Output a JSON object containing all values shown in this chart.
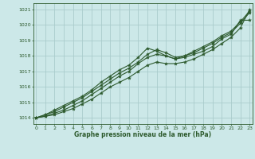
{
  "title": "Graphe pression niveau de la mer (hPa)",
  "bg_color": "#cce8e8",
  "grid_color": "#aacccc",
  "line_color": "#2d5a2d",
  "xlim": [
    -0.3,
    23.3
  ],
  "ylim": [
    1013.6,
    1021.4
  ],
  "yticks": [
    1014,
    1015,
    1016,
    1017,
    1018,
    1019,
    1020,
    1021
  ],
  "xticks": [
    0,
    1,
    2,
    3,
    4,
    5,
    6,
    7,
    8,
    9,
    10,
    11,
    12,
    13,
    14,
    15,
    16,
    17,
    18,
    19,
    20,
    21,
    22,
    23
  ],
  "figsize": [
    3.2,
    2.0
  ],
  "dpi": 100,
  "series": [
    [
      1014.0,
      1014.1,
      1014.2,
      1014.4,
      1014.6,
      1014.9,
      1015.2,
      1015.6,
      1016.0,
      1016.3,
      1016.6,
      1017.0,
      1017.4,
      1017.6,
      1017.5,
      1017.5,
      1017.6,
      1017.8,
      1018.1,
      1018.4,
      1018.8,
      1019.2,
      1019.8,
      1021.0
    ],
    [
      1014.0,
      1014.1,
      1014.3,
      1014.5,
      1014.8,
      1015.1,
      1015.5,
      1015.9,
      1016.3,
      1016.7,
      1017.0,
      1017.5,
      1017.9,
      1018.1,
      1018.0,
      1017.8,
      1017.9,
      1018.1,
      1018.3,
      1018.6,
      1019.1,
      1019.4,
      1020.3,
      1020.3
    ],
    [
      1014.0,
      1014.2,
      1014.4,
      1014.7,
      1015.0,
      1015.3,
      1015.7,
      1016.1,
      1016.5,
      1016.9,
      1017.2,
      1017.6,
      1018.1,
      1018.4,
      1018.2,
      1017.9,
      1018.0,
      1018.2,
      1018.5,
      1018.8,
      1019.2,
      1019.5,
      1020.1,
      1020.8
    ],
    [
      1014.0,
      1014.2,
      1014.5,
      1014.8,
      1015.1,
      1015.4,
      1015.8,
      1016.3,
      1016.7,
      1017.1,
      1017.4,
      1017.9,
      1018.5,
      1018.3,
      1018.0,
      1017.8,
      1018.0,
      1018.3,
      1018.6,
      1018.9,
      1019.3,
      1019.6,
      1020.2,
      1020.9
    ]
  ]
}
